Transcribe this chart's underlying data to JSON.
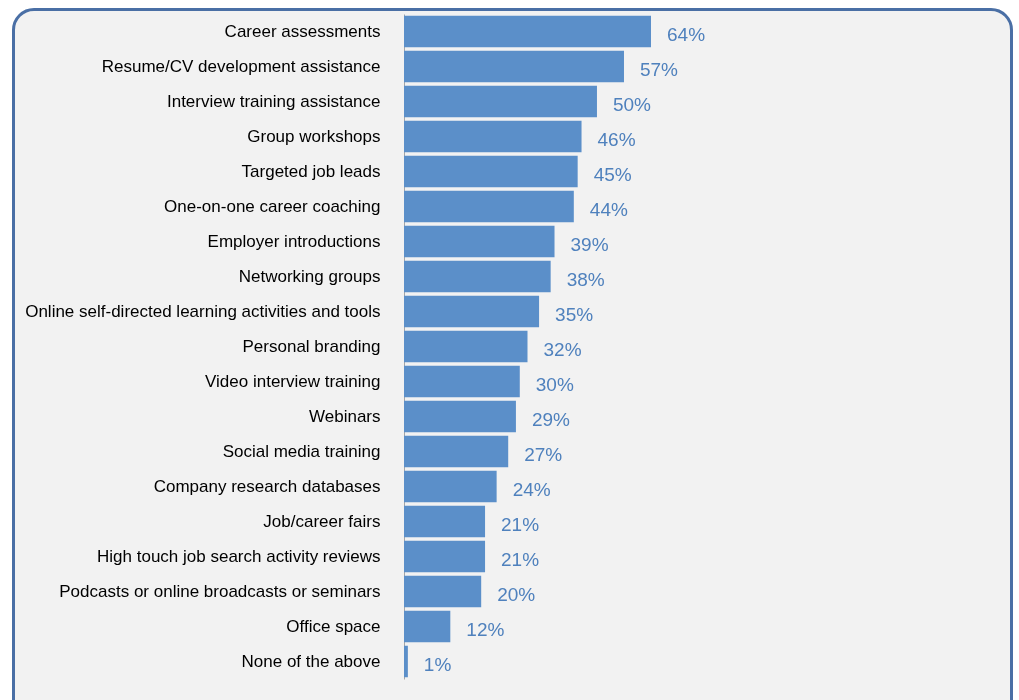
{
  "chart_data": {
    "type": "bar",
    "orientation": "horizontal",
    "color": "#5b8fc9",
    "categories": [
      "Career assessments",
      "Resume/CV development assistance",
      "Interview training assistance",
      "Group workshops",
      "Targeted job leads",
      "One-on-one career coaching",
      "Employer introductions",
      "Networking groups",
      "Online self-directed learning activities and tools",
      "Personal branding",
      "Video interview training",
      "Webinars",
      "Social media training",
      "Company research databases",
      "Job/career fairs",
      "High touch job search activity reviews",
      "Podcasts or online broadcasts or seminars",
      "Office space",
      "None of the above"
    ],
    "values": [
      64,
      57,
      50,
      46,
      45,
      44,
      39,
      38,
      35,
      32,
      30,
      29,
      27,
      24,
      21,
      21,
      20,
      12,
      1
    ],
    "value_labels": [
      "64%",
      "57%",
      "50%",
      "46%",
      "45%",
      "44%",
      "39%",
      "38%",
      "35%",
      "32%",
      "30%",
      "29%",
      "27%",
      "24%",
      "21%",
      "21%",
      "20%",
      "12%",
      "1%"
    ]
  }
}
